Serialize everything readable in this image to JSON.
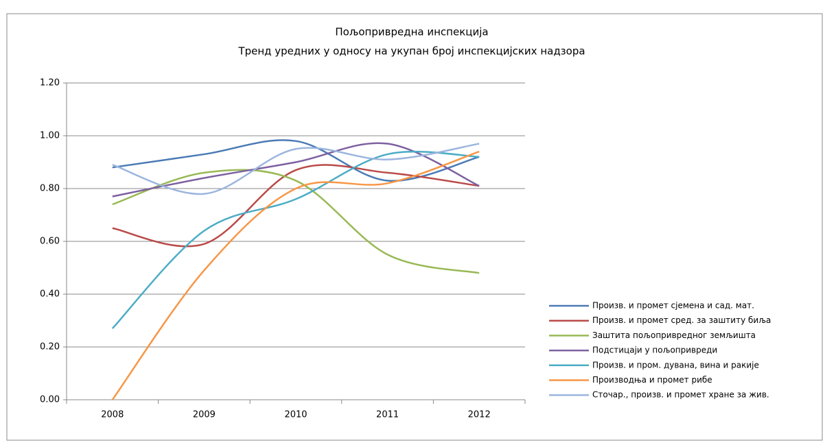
{
  "chart_data": {
    "type": "line",
    "title": "Пољопривредна инспекција",
    "subtitle": "Тренд уредних у односу на укупан број инспекцијских надзора",
    "categories": [
      "2008",
      "2009",
      "2010",
      "2011",
      "2012"
    ],
    "series": [
      {
        "name": "Произв. и промет сјемена и сад. мат.",
        "color": "#4a7ab5",
        "values": [
          0.88,
          0.93,
          0.98,
          0.83,
          0.92
        ]
      },
      {
        "name": "Произв. и промет сред. за заштиту биља",
        "color": "#b94a48",
        "values": [
          0.65,
          0.59,
          0.87,
          0.86,
          0.81
        ]
      },
      {
        "name": "Заштита пољопривредног земљишта",
        "color": "#98b954",
        "values": [
          0.74,
          0.86,
          0.83,
          0.55,
          0.48
        ]
      },
      {
        "name": "Подстицаји у пољопривреди",
        "color": "#7d60a0",
        "values": [
          0.77,
          0.84,
          0.9,
          0.97,
          0.81
        ]
      },
      {
        "name": "Произв. и пром. дувана, вина и ракије",
        "color": "#4bacc6",
        "values": [
          0.27,
          0.64,
          0.76,
          0.93,
          0.92
        ]
      },
      {
        "name": "Производња и промет рибе",
        "color": "#f79646",
        "values": [
          0.0,
          0.49,
          0.8,
          0.82,
          0.94
        ]
      },
      {
        "name": "Сточар., произв. и промет хране за жив.",
        "color": "#9bb5de",
        "values": [
          0.89,
          0.78,
          0.95,
          0.91,
          0.97
        ]
      }
    ],
    "ylim": [
      0,
      1.2
    ],
    "yticks": [
      {
        "value": 0,
        "label": "0.00"
      },
      {
        "value": 0.2,
        "label": "0.20"
      },
      {
        "value": 0.4,
        "label": "0.40"
      },
      {
        "value": 0.6,
        "label": "0.60"
      },
      {
        "value": 0.8,
        "label": "0.80"
      },
      {
        "value": 1.0,
        "label": "1.00"
      },
      {
        "value": 1.2,
        "label": "1.20"
      }
    ],
    "grid": true,
    "smooth": true,
    "legend": "right"
  }
}
